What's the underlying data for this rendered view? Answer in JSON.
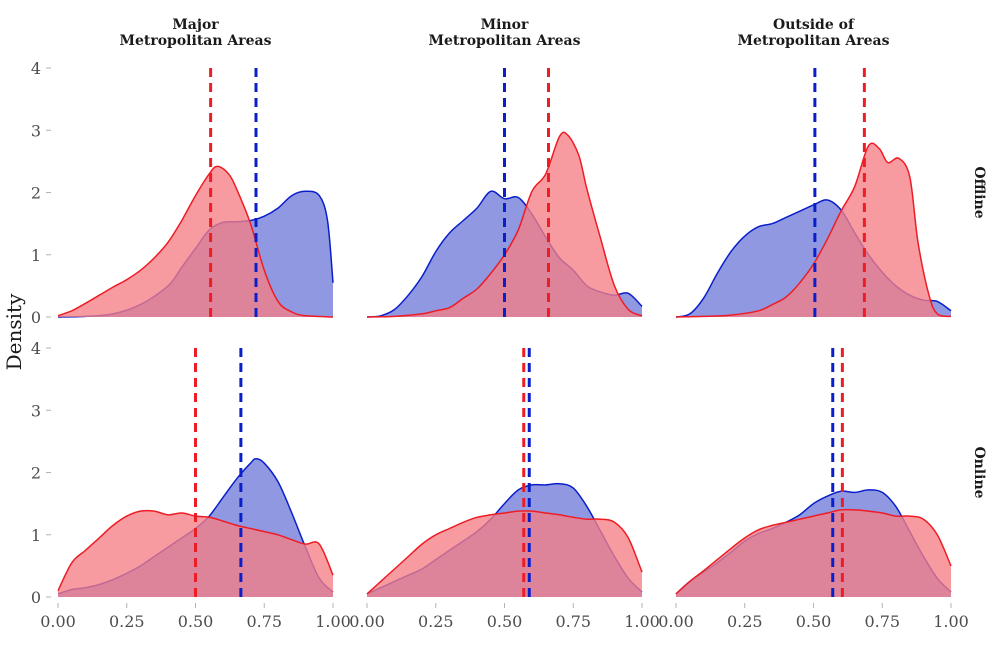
{
  "chart_data": {
    "type": "area",
    "ylabel": "Density",
    "xlabel": "",
    "xlim": [
      0,
      1
    ],
    "ylim": [
      0,
      4
    ],
    "x_ticks": [
      "0.00",
      "0.25",
      "0.50",
      "0.75",
      "1.00"
    ],
    "y_ticks": [
      "0",
      "1",
      "2",
      "3",
      "4"
    ],
    "columns": [
      "Major\nMetropolitan Areas",
      "Minor\nMetropolitan Areas",
      "Outside of\nMetropolitan Areas"
    ],
    "rows": [
      "Offline",
      "Online"
    ],
    "colors": {
      "blue": "#0a1fc9",
      "blue_fill": "#7b86dc",
      "red": "#ee1c25",
      "red_fill": "#f57f85"
    },
    "grid": false,
    "panels": [
      {
        "row": "Offline",
        "column": "Major\nMetropolitan Areas",
        "blue_mean": 0.72,
        "red_mean": 0.555,
        "blue": [
          [
            0,
            0
          ],
          [
            0.1,
            0.01
          ],
          [
            0.2,
            0.05
          ],
          [
            0.3,
            0.2
          ],
          [
            0.4,
            0.5
          ],
          [
            0.45,
            0.8
          ],
          [
            0.5,
            1.1
          ],
          [
            0.55,
            1.4
          ],
          [
            0.6,
            1.52
          ],
          [
            0.65,
            1.53
          ],
          [
            0.7,
            1.55
          ],
          [
            0.75,
            1.62
          ],
          [
            0.8,
            1.75
          ],
          [
            0.85,
            1.95
          ],
          [
            0.9,
            2.02
          ],
          [
            0.95,
            1.95
          ],
          [
            0.98,
            1.55
          ],
          [
            1.0,
            0.55
          ]
        ],
        "red": [
          [
            0,
            0.02
          ],
          [
            0.05,
            0.1
          ],
          [
            0.1,
            0.22
          ],
          [
            0.15,
            0.35
          ],
          [
            0.2,
            0.48
          ],
          [
            0.25,
            0.6
          ],
          [
            0.3,
            0.75
          ],
          [
            0.35,
            0.95
          ],
          [
            0.4,
            1.2
          ],
          [
            0.45,
            1.55
          ],
          [
            0.5,
            1.95
          ],
          [
            0.55,
            2.3
          ],
          [
            0.58,
            2.42
          ],
          [
            0.62,
            2.3
          ],
          [
            0.65,
            2.05
          ],
          [
            0.7,
            1.5
          ],
          [
            0.75,
            0.75
          ],
          [
            0.8,
            0.25
          ],
          [
            0.85,
            0.08
          ],
          [
            0.9,
            0.02
          ],
          [
            1.0,
            0
          ]
        ]
      },
      {
        "row": "Offline",
        "column": "Minor\nMetropolitan Areas",
        "blue_mean": 0.5,
        "red_mean": 0.66,
        "blue": [
          [
            0,
            0
          ],
          [
            0.05,
            0.02
          ],
          [
            0.1,
            0.12
          ],
          [
            0.15,
            0.35
          ],
          [
            0.2,
            0.65
          ],
          [
            0.25,
            1.05
          ],
          [
            0.3,
            1.35
          ],
          [
            0.35,
            1.55
          ],
          [
            0.4,
            1.75
          ],
          [
            0.45,
            2.02
          ],
          [
            0.5,
            1.9
          ],
          [
            0.55,
            1.92
          ],
          [
            0.6,
            1.65
          ],
          [
            0.65,
            1.28
          ],
          [
            0.7,
            0.95
          ],
          [
            0.75,
            0.75
          ],
          [
            0.8,
            0.5
          ],
          [
            0.85,
            0.4
          ],
          [
            0.9,
            0.35
          ],
          [
            0.95,
            0.38
          ],
          [
            1.0,
            0.17
          ]
        ],
        "red": [
          [
            0,
            0
          ],
          [
            0.1,
            0.01
          ],
          [
            0.2,
            0.05
          ],
          [
            0.25,
            0.1
          ],
          [
            0.3,
            0.15
          ],
          [
            0.35,
            0.3
          ],
          [
            0.4,
            0.45
          ],
          [
            0.45,
            0.7
          ],
          [
            0.5,
            1.0
          ],
          [
            0.55,
            1.4
          ],
          [
            0.6,
            2.02
          ],
          [
            0.65,
            2.3
          ],
          [
            0.7,
            2.9
          ],
          [
            0.73,
            2.92
          ],
          [
            0.77,
            2.6
          ],
          [
            0.8,
            2.05
          ],
          [
            0.85,
            1.25
          ],
          [
            0.9,
            0.5
          ],
          [
            0.95,
            0.12
          ],
          [
            1.0,
            0.02
          ]
        ]
      },
      {
        "row": "Offline",
        "column": "Outside of\nMetropolitan Areas",
        "blue_mean": 0.505,
        "red_mean": 0.685,
        "blue": [
          [
            0,
            0
          ],
          [
            0.05,
            0.05
          ],
          [
            0.1,
            0.3
          ],
          [
            0.15,
            0.7
          ],
          [
            0.2,
            1.05
          ],
          [
            0.25,
            1.3
          ],
          [
            0.3,
            1.45
          ],
          [
            0.35,
            1.5
          ],
          [
            0.4,
            1.6
          ],
          [
            0.45,
            1.7
          ],
          [
            0.5,
            1.8
          ],
          [
            0.55,
            1.88
          ],
          [
            0.6,
            1.72
          ],
          [
            0.65,
            1.35
          ],
          [
            0.7,
            1.0
          ],
          [
            0.75,
            0.72
          ],
          [
            0.8,
            0.5
          ],
          [
            0.85,
            0.35
          ],
          [
            0.9,
            0.27
          ],
          [
            0.95,
            0.25
          ],
          [
            1.0,
            0.1
          ]
        ],
        "red": [
          [
            0,
            0
          ],
          [
            0.1,
            0.01
          ],
          [
            0.2,
            0.03
          ],
          [
            0.3,
            0.1
          ],
          [
            0.35,
            0.2
          ],
          [
            0.4,
            0.32
          ],
          [
            0.45,
            0.55
          ],
          [
            0.5,
            0.85
          ],
          [
            0.55,
            1.25
          ],
          [
            0.6,
            1.7
          ],
          [
            0.65,
            2.1
          ],
          [
            0.7,
            2.75
          ],
          [
            0.74,
            2.7
          ],
          [
            0.77,
            2.48
          ],
          [
            0.81,
            2.55
          ],
          [
            0.85,
            2.25
          ],
          [
            0.88,
            1.2
          ],
          [
            0.92,
            0.35
          ],
          [
            0.95,
            0.05
          ],
          [
            1.0,
            0.01
          ]
        ]
      },
      {
        "row": "Online",
        "column": "Major\nMetropolitan Areas",
        "blue_mean": 0.665,
        "red_mean": 0.5,
        "blue": [
          [
            0,
            0.05
          ],
          [
            0.05,
            0.12
          ],
          [
            0.1,
            0.15
          ],
          [
            0.15,
            0.2
          ],
          [
            0.2,
            0.28
          ],
          [
            0.25,
            0.38
          ],
          [
            0.3,
            0.5
          ],
          [
            0.35,
            0.65
          ],
          [
            0.4,
            0.8
          ],
          [
            0.45,
            0.95
          ],
          [
            0.5,
            1.1
          ],
          [
            0.55,
            1.3
          ],
          [
            0.6,
            1.6
          ],
          [
            0.65,
            1.9
          ],
          [
            0.7,
            2.15
          ],
          [
            0.72,
            2.22
          ],
          [
            0.75,
            2.15
          ],
          [
            0.8,
            1.85
          ],
          [
            0.85,
            1.35
          ],
          [
            0.9,
            0.8
          ],
          [
            0.95,
            0.3
          ],
          [
            1.0,
            0.08
          ]
        ],
        "red": [
          [
            0,
            0.1
          ],
          [
            0.05,
            0.55
          ],
          [
            0.1,
            0.75
          ],
          [
            0.15,
            0.95
          ],
          [
            0.2,
            1.15
          ],
          [
            0.25,
            1.3
          ],
          [
            0.3,
            1.38
          ],
          [
            0.35,
            1.38
          ],
          [
            0.4,
            1.32
          ],
          [
            0.45,
            1.35
          ],
          [
            0.5,
            1.3
          ],
          [
            0.55,
            1.28
          ],
          [
            0.6,
            1.22
          ],
          [
            0.65,
            1.15
          ],
          [
            0.7,
            1.1
          ],
          [
            0.75,
            1.05
          ],
          [
            0.8,
            1.0
          ],
          [
            0.85,
            0.92
          ],
          [
            0.9,
            0.85
          ],
          [
            0.95,
            0.85
          ],
          [
            1.0,
            0.35
          ]
        ]
      },
      {
        "row": "Online",
        "column": "Minor\nMetropolitan Areas",
        "blue_mean": 0.59,
        "red_mean": 0.57,
        "blue": [
          [
            0,
            0.05
          ],
          [
            0.05,
            0.15
          ],
          [
            0.1,
            0.25
          ],
          [
            0.15,
            0.35
          ],
          [
            0.2,
            0.45
          ],
          [
            0.25,
            0.6
          ],
          [
            0.3,
            0.75
          ],
          [
            0.35,
            0.9
          ],
          [
            0.4,
            1.05
          ],
          [
            0.45,
            1.25
          ],
          [
            0.5,
            1.5
          ],
          [
            0.55,
            1.72
          ],
          [
            0.6,
            1.8
          ],
          [
            0.65,
            1.8
          ],
          [
            0.7,
            1.82
          ],
          [
            0.75,
            1.75
          ],
          [
            0.8,
            1.45
          ],
          [
            0.85,
            1.05
          ],
          [
            0.9,
            0.65
          ],
          [
            0.95,
            0.3
          ],
          [
            1.0,
            0.08
          ]
        ],
        "red": [
          [
            0,
            0.05
          ],
          [
            0.05,
            0.25
          ],
          [
            0.1,
            0.45
          ],
          [
            0.15,
            0.65
          ],
          [
            0.2,
            0.85
          ],
          [
            0.25,
            1.0
          ],
          [
            0.3,
            1.1
          ],
          [
            0.35,
            1.2
          ],
          [
            0.4,
            1.28
          ],
          [
            0.45,
            1.32
          ],
          [
            0.5,
            1.35
          ],
          [
            0.55,
            1.38
          ],
          [
            0.6,
            1.38
          ],
          [
            0.65,
            1.35
          ],
          [
            0.7,
            1.32
          ],
          [
            0.75,
            1.28
          ],
          [
            0.8,
            1.25
          ],
          [
            0.85,
            1.25
          ],
          [
            0.9,
            1.2
          ],
          [
            0.95,
            0.95
          ],
          [
            1.0,
            0.4
          ]
        ]
      },
      {
        "row": "Online",
        "column": "Outside of\nMetropolitan Areas",
        "blue_mean": 0.57,
        "red_mean": 0.605,
        "blue": [
          [
            0,
            0.05
          ],
          [
            0.05,
            0.25
          ],
          [
            0.1,
            0.4
          ],
          [
            0.15,
            0.55
          ],
          [
            0.2,
            0.72
          ],
          [
            0.25,
            0.9
          ],
          [
            0.3,
            1.02
          ],
          [
            0.35,
            1.1
          ],
          [
            0.4,
            1.2
          ],
          [
            0.45,
            1.32
          ],
          [
            0.5,
            1.5
          ],
          [
            0.55,
            1.62
          ],
          [
            0.6,
            1.7
          ],
          [
            0.65,
            1.68
          ],
          [
            0.7,
            1.72
          ],
          [
            0.75,
            1.68
          ],
          [
            0.8,
            1.45
          ],
          [
            0.85,
            1.05
          ],
          [
            0.9,
            0.65
          ],
          [
            0.95,
            0.3
          ],
          [
            1.0,
            0.08
          ]
        ],
        "red": [
          [
            0,
            0.05
          ],
          [
            0.05,
            0.25
          ],
          [
            0.1,
            0.42
          ],
          [
            0.15,
            0.6
          ],
          [
            0.2,
            0.78
          ],
          [
            0.25,
            0.95
          ],
          [
            0.3,
            1.08
          ],
          [
            0.35,
            1.15
          ],
          [
            0.4,
            1.2
          ],
          [
            0.45,
            1.25
          ],
          [
            0.5,
            1.3
          ],
          [
            0.55,
            1.35
          ],
          [
            0.6,
            1.4
          ],
          [
            0.65,
            1.4
          ],
          [
            0.7,
            1.38
          ],
          [
            0.75,
            1.35
          ],
          [
            0.8,
            1.3
          ],
          [
            0.85,
            1.3
          ],
          [
            0.9,
            1.25
          ],
          [
            0.95,
            1.0
          ],
          [
            1.0,
            0.5
          ]
        ]
      }
    ]
  }
}
